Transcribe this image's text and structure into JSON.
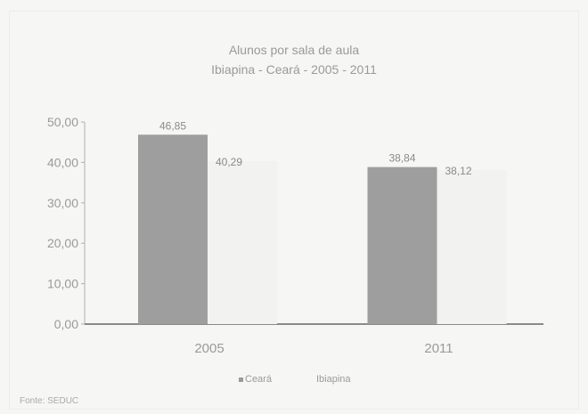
{
  "chart_data": {
    "type": "bar",
    "title": "Alunos por sala de aula",
    "subtitle": "Ibiapina - Ceará - 2005 - 2011",
    "categories": [
      "2005",
      "2011"
    ],
    "series": [
      {
        "name": "Ceará",
        "values": [
          46.85,
          38.84
        ],
        "labels": [
          "46,85",
          "38,84"
        ],
        "color": "#9e9e9e"
      },
      {
        "name": "Ibiapina",
        "values": [
          40.29,
          38.12
        ],
        "labels": [
          "40,29",
          "38,12"
        ],
        "color": "#f2f2f0"
      }
    ],
    "ylim": [
      0,
      50
    ],
    "yticks": [
      "0,00",
      "10,00",
      "20,00",
      "30,00",
      "40,00",
      "50,00"
    ],
    "grid": false,
    "legend_position": "bottom"
  },
  "source": "Fonte: SEDUC"
}
